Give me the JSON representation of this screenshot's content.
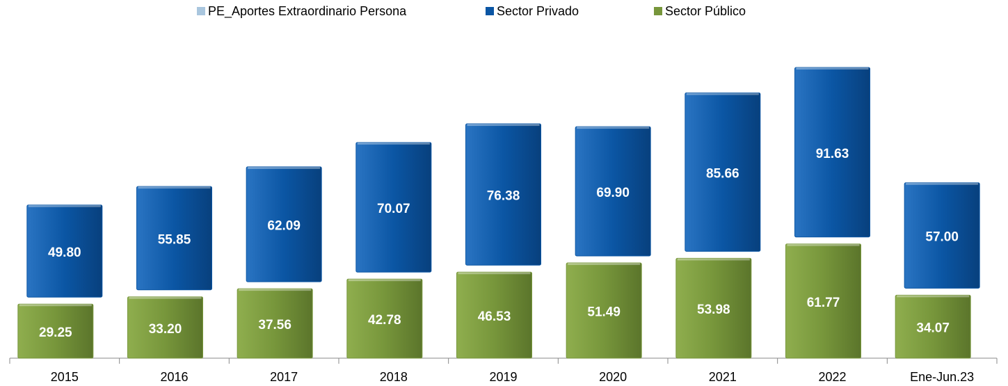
{
  "chart_data": {
    "type": "stacked_bar",
    "categories": [
      "2015",
      "2016",
      "2017",
      "2018",
      "2019",
      "2020",
      "2021",
      "2022",
      "Ene-Jun.23"
    ],
    "series": [
      {
        "name": "PE_Aportes Extraordinario Persona",
        "color": "#a9c6de"
      },
      {
        "name": "Sector Privado",
        "color": "#0b56a4",
        "values": [
          49.8,
          55.85,
          62.09,
          70.07,
          76.38,
          69.9,
          85.66,
          91.63,
          57.0
        ],
        "value_labels": [
          "49.80",
          "55.85",
          "62.09",
          "70.07",
          "76.38",
          "69.90",
          "85.66",
          "91.63",
          "57.00"
        ]
      },
      {
        "name": "Sector  Público",
        "color": "#77963b",
        "values": [
          29.25,
          33.2,
          37.56,
          42.78,
          46.53,
          51.49,
          53.98,
          61.77,
          34.07
        ],
        "value_labels": [
          "29.25",
          "33.20",
          "37.56",
          "42.78",
          "46.53",
          "51.49",
          "53.98",
          "61.77",
          "34.07"
        ]
      }
    ],
    "legend": "top"
  }
}
